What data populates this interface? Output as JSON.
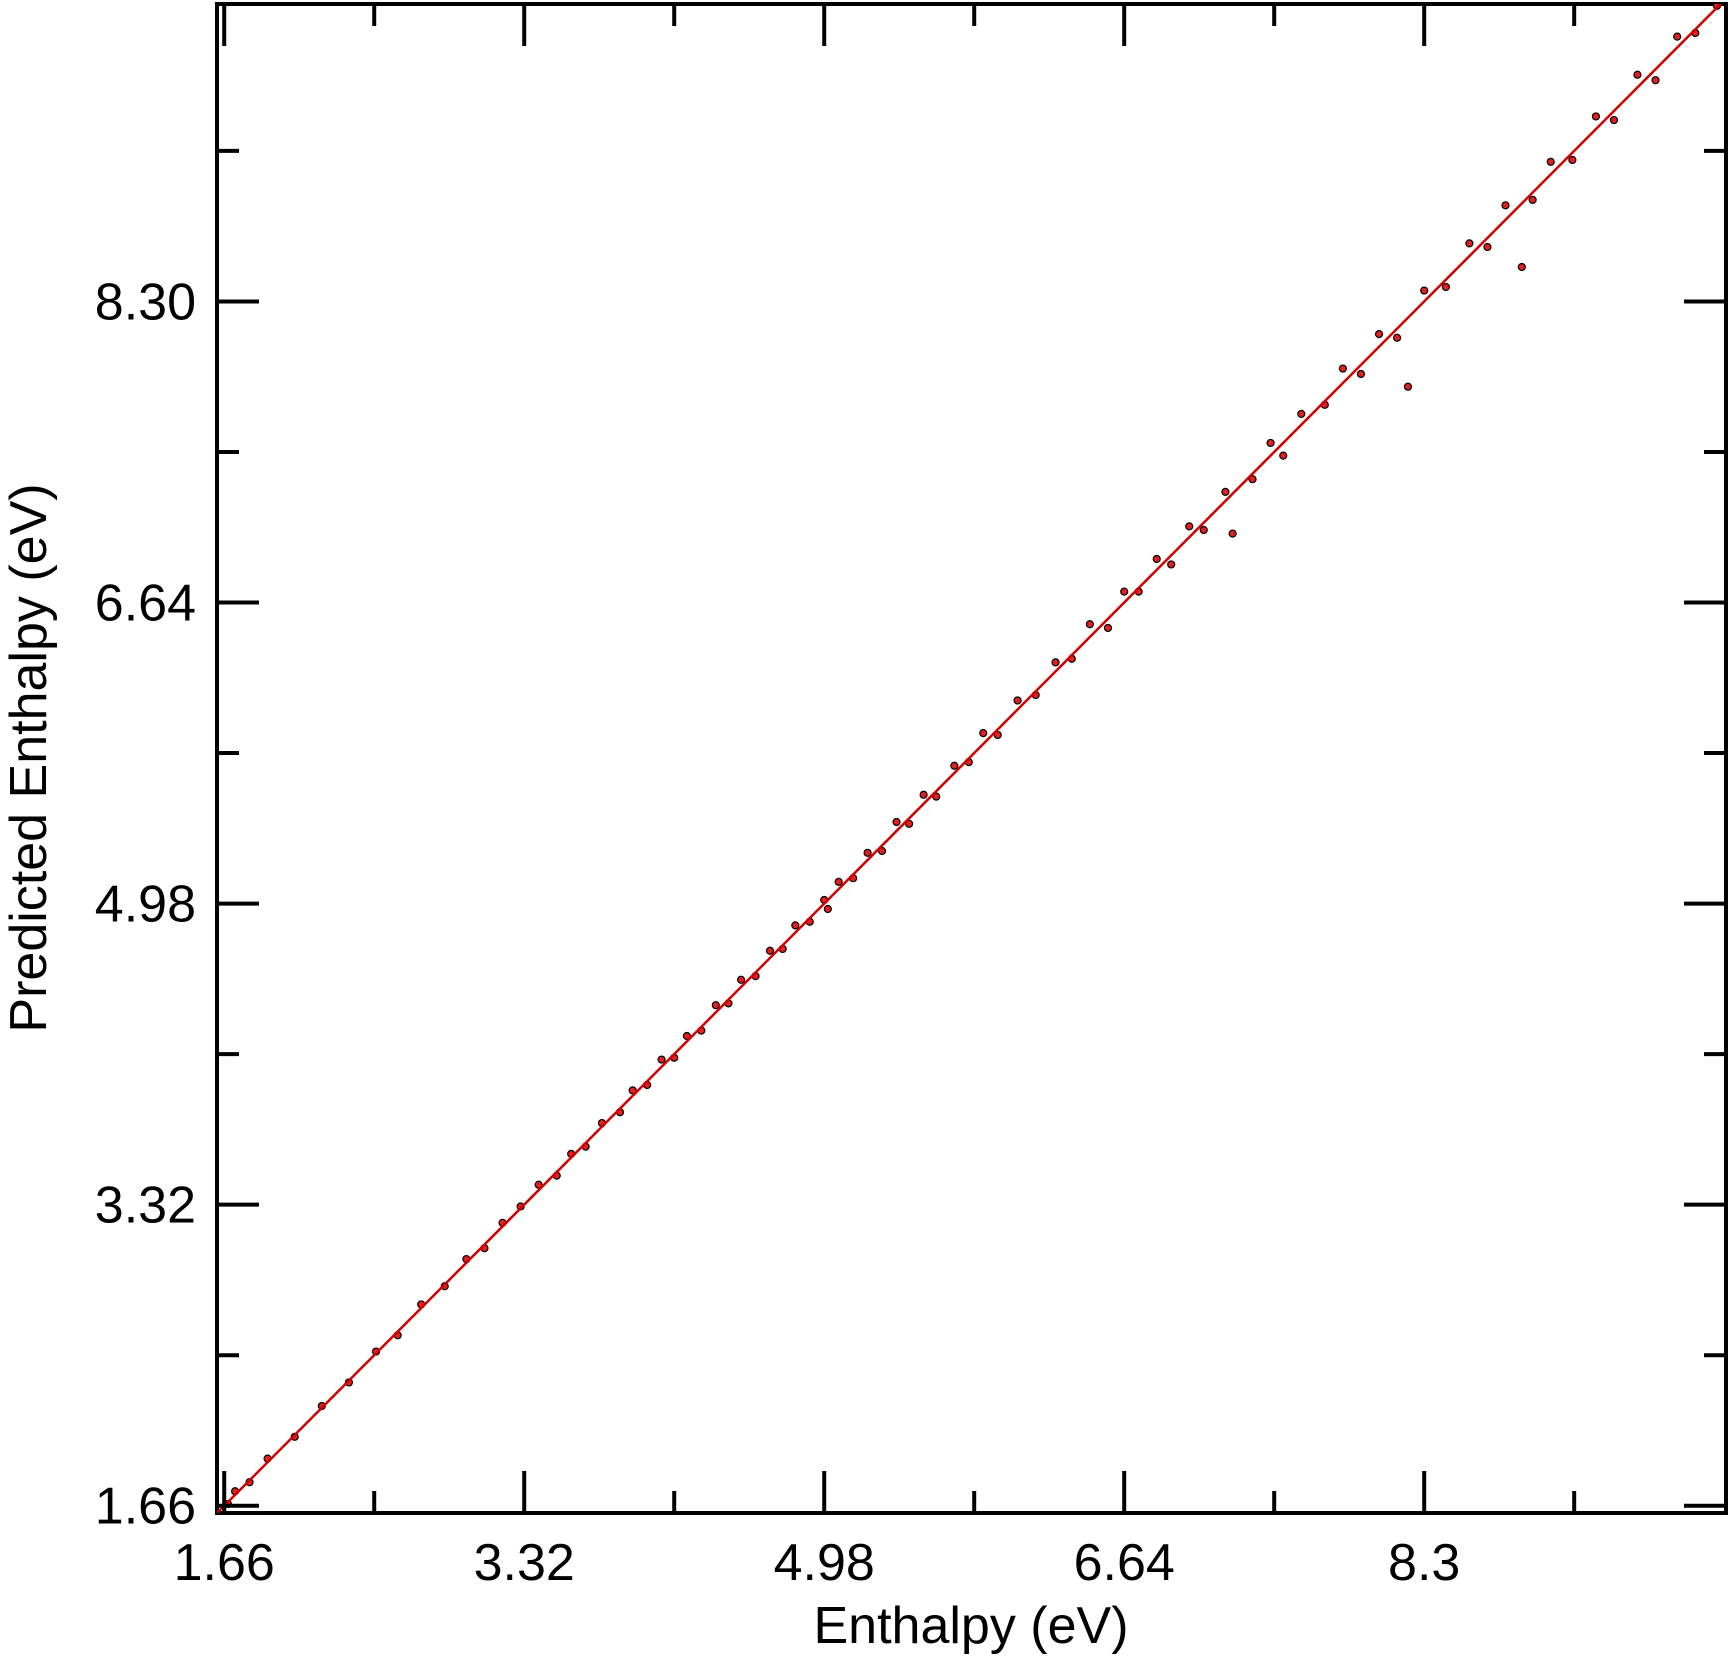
{
  "chart_data": {
    "type": "scatter",
    "x_label": "Enthalpy (eV)",
    "y_label": "Predicted Enthalpy (eV)",
    "xlim": [
      1.62,
      9.97
    ],
    "ylim": [
      1.62,
      9.94
    ],
    "xticks": [
      1.66,
      3.32,
      4.98,
      6.64,
      8.3
    ],
    "yticks": [
      1.66,
      3.32,
      4.98,
      6.64,
      {
        "value": 8.3,
        "label": "8.30"
      }
    ],
    "xminorticks": [
      2.49,
      4.15,
      5.81,
      7.47,
      9.13
    ],
    "yminorticks": [
      2.49,
      4.15,
      5.81,
      7.47,
      9.13
    ],
    "grid": false,
    "series": [
      {
        "color": "#e02020",
        "x": [
          1.68,
          1.72,
          1.8,
          1.9,
          2.05,
          2.2,
          2.35,
          2.5,
          2.62,
          2.75,
          2.88,
          3.0,
          3.1,
          3.2,
          3.3,
          3.4,
          3.5,
          3.58,
          3.66,
          3.75,
          3.85,
          3.92,
          4.0,
          4.08,
          4.15,
          4.22,
          4.3,
          4.38,
          4.45,
          4.52,
          4.6,
          4.68,
          4.75,
          4.82,
          4.9,
          4.98,
          5.0,
          5.06,
          5.14,
          5.22,
          5.3,
          5.38,
          5.45,
          5.53,
          5.6,
          5.7,
          5.78,
          5.86,
          5.94,
          6.05,
          6.15,
          6.26,
          6.35,
          6.45,
          6.55,
          6.64,
          6.72,
          6.82,
          6.9,
          7.0,
          7.08,
          7.2,
          7.24,
          7.35,
          7.45,
          7.52,
          7.62,
          7.75,
          7.85,
          7.95,
          8.05,
          8.15,
          8.21,
          8.3,
          8.42,
          8.55,
          8.65,
          8.75,
          8.84,
          8.9,
          9.0,
          9.12,
          9.25,
          9.35,
          9.48,
          9.58,
          9.7,
          9.8,
          9.92
        ],
        "values": [
          1.67,
          1.74,
          1.79,
          1.92,
          2.04,
          2.21,
          2.34,
          2.51,
          2.6,
          2.77,
          2.87,
          3.02,
          3.08,
          3.22,
          3.31,
          3.43,
          3.48,
          3.6,
          3.64,
          3.77,
          3.83,
          3.95,
          3.98,
          4.12,
          4.13,
          4.25,
          4.28,
          4.42,
          4.43,
          4.56,
          4.58,
          4.72,
          4.73,
          4.86,
          4.88,
          5.0,
          4.95,
          5.1,
          5.12,
          5.26,
          5.27,
          5.43,
          5.42,
          5.58,
          5.57,
          5.74,
          5.76,
          5.92,
          5.91,
          6.1,
          6.13,
          6.31,
          6.33,
          6.52,
          6.5,
          6.7,
          6.7,
          6.88,
          6.85,
          7.06,
          7.04,
          7.25,
          7.02,
          7.32,
          7.52,
          7.45,
          7.68,
          7.73,
          7.93,
          7.9,
          8.12,
          8.1,
          7.83,
          8.36,
          8.38,
          8.62,
          8.6,
          8.83,
          8.49,
          8.86,
          9.07,
          9.08,
          9.32,
          9.3,
          9.55,
          9.52,
          9.76,
          9.78,
          9.93
        ]
      }
    ],
    "fit_line": {
      "color": "#d00000",
      "x": [
        1.62,
        9.94
      ],
      "values": [
        1.62,
        9.94
      ]
    }
  }
}
